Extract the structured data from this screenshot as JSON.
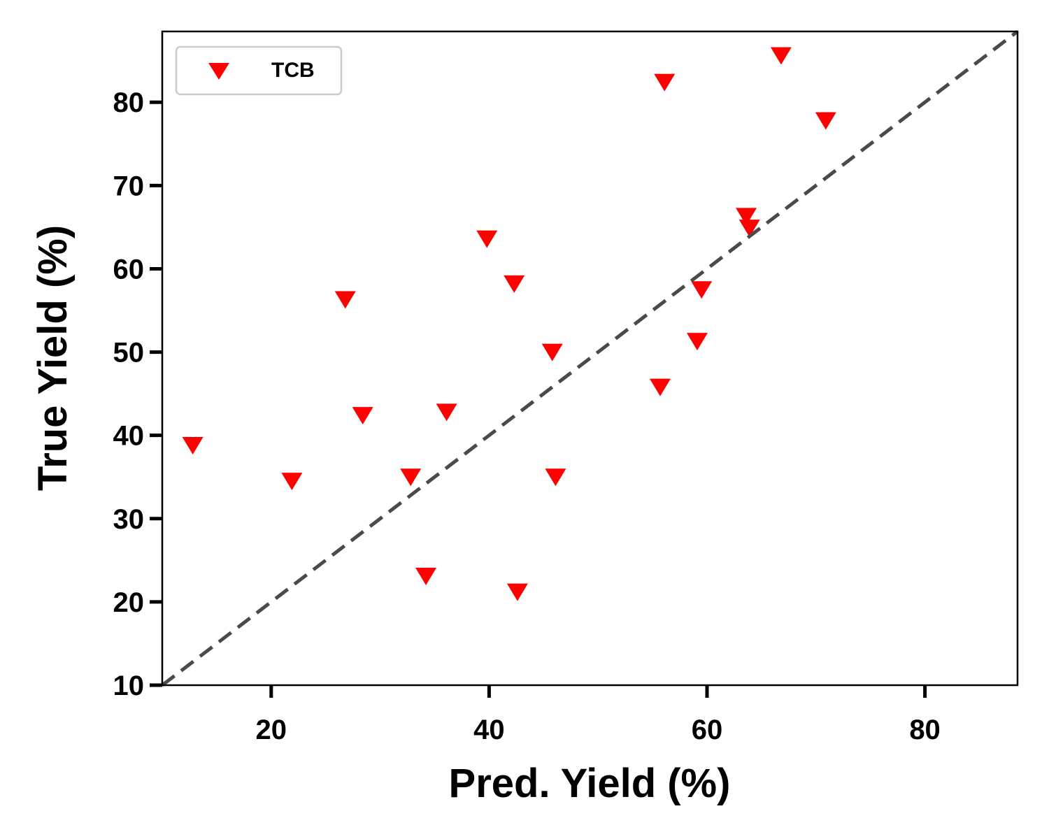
{
  "chart_data": {
    "type": "scatter",
    "xlabel": "Pred. Yield (%)",
    "ylabel": "True Yield (%)",
    "xlim": [
      10,
      88.5
    ],
    "ylim": [
      10,
      88.5
    ],
    "xticks": [
      20,
      40,
      60,
      80
    ],
    "yticks": [
      10,
      20,
      30,
      40,
      50,
      60,
      70,
      80
    ],
    "grid": false,
    "legend_position": "top-left",
    "reference_line": {
      "style": "dashed",
      "from": [
        10,
        10
      ],
      "to": [
        88.5,
        88.5
      ],
      "color": "#4a4a4a"
    },
    "series": [
      {
        "name": "TCB",
        "marker": "triangle-down",
        "color": "#ff0000",
        "points": [
          {
            "x": 12.8,
            "y": 38.8
          },
          {
            "x": 21.9,
            "y": 34.5
          },
          {
            "x": 26.8,
            "y": 56.3
          },
          {
            "x": 28.4,
            "y": 42.4
          },
          {
            "x": 32.8,
            "y": 35.0
          },
          {
            "x": 34.2,
            "y": 23.1
          },
          {
            "x": 36.1,
            "y": 42.8
          },
          {
            "x": 39.8,
            "y": 63.6
          },
          {
            "x": 42.3,
            "y": 58.2
          },
          {
            "x": 42.6,
            "y": 21.2
          },
          {
            "x": 45.8,
            "y": 50.0
          },
          {
            "x": 46.1,
            "y": 35.0
          },
          {
            "x": 55.7,
            "y": 45.8
          },
          {
            "x": 56.1,
            "y": 82.4
          },
          {
            "x": 59.1,
            "y": 51.3
          },
          {
            "x": 59.5,
            "y": 57.5
          },
          {
            "x": 63.6,
            "y": 66.3
          },
          {
            "x": 63.9,
            "y": 64.9
          },
          {
            "x": 66.8,
            "y": 85.6
          },
          {
            "x": 70.9,
            "y": 77.8
          }
        ]
      }
    ]
  }
}
